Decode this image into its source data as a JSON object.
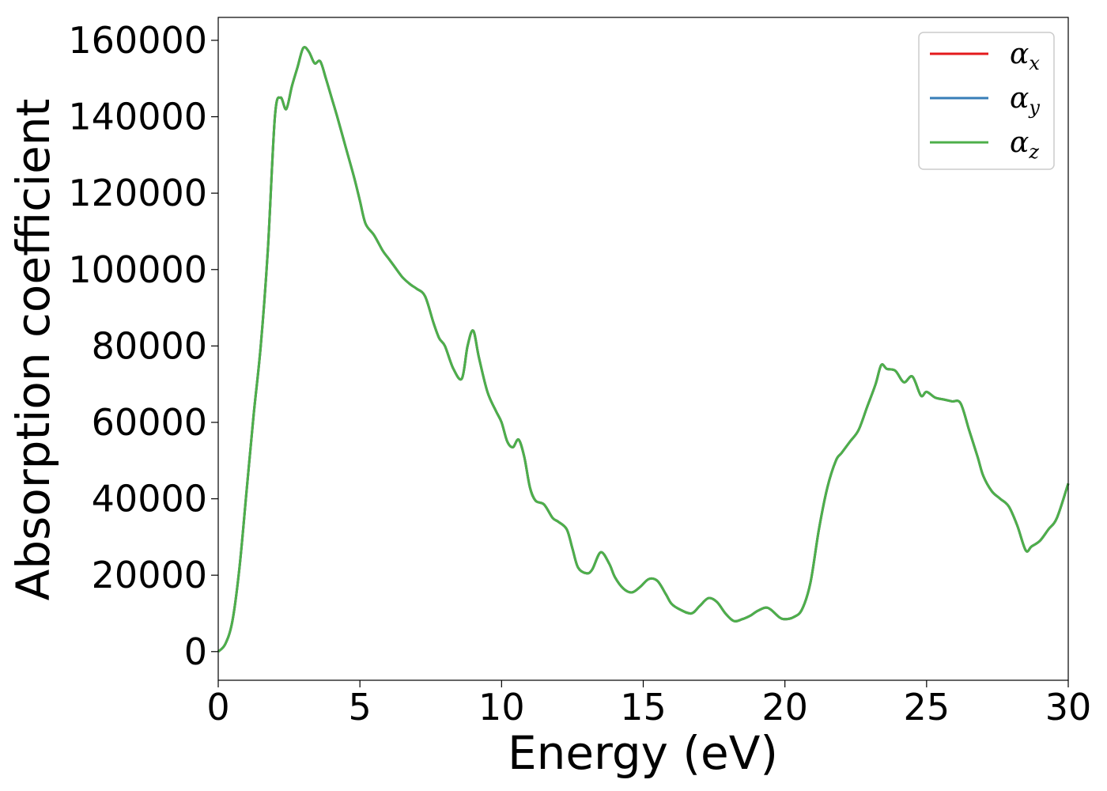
{
  "chart_data": {
    "type": "line",
    "title": "",
    "xlabel": "Energy (eV)",
    "ylabel": "Absorption coefficient",
    "xlim": [
      0,
      30
    ],
    "ylim": [
      -7500,
      166000
    ],
    "xticks": [
      0,
      5,
      10,
      15,
      20,
      25,
      30
    ],
    "yticks": [
      0,
      20000,
      40000,
      60000,
      80000,
      100000,
      120000,
      140000,
      160000
    ],
    "grid": false,
    "legend_position": "top-right",
    "series": [
      {
        "name": "α",
        "sub": "x",
        "color": "#e41a1c",
        "data_ref": "common"
      },
      {
        "name": "α",
        "sub": "y",
        "color": "#377eb8",
        "data_ref": "common"
      },
      {
        "name": "α",
        "sub": "z",
        "color": "#4daf4a",
        "data_ref": "common"
      }
    ],
    "common_curve": {
      "x": [
        0,
        0.25,
        0.5,
        0.75,
        1.0,
        1.25,
        1.5,
        1.75,
        2.0,
        2.2,
        2.4,
        2.6,
        2.8,
        3.0,
        3.2,
        3.4,
        3.6,
        3.8,
        4.0,
        4.2,
        4.5,
        4.8,
        5.0,
        5.2,
        5.5,
        5.8,
        6.0,
        6.2,
        6.5,
        6.8,
        7.0,
        7.3,
        7.6,
        7.8,
        8.0,
        8.3,
        8.6,
        8.8,
        9.0,
        9.2,
        9.5,
        9.8,
        10.0,
        10.2,
        10.4,
        10.6,
        10.8,
        11.0,
        11.2,
        11.5,
        11.8,
        12.0,
        12.3,
        12.5,
        12.7,
        13.0,
        13.2,
        13.5,
        13.8,
        14.0,
        14.3,
        14.6,
        14.9,
        15.2,
        15.5,
        15.8,
        16.0,
        16.3,
        16.7,
        17.0,
        17.3,
        17.6,
        17.9,
        18.2,
        18.5,
        18.8,
        19.0,
        19.3,
        19.5,
        19.8,
        20.0,
        20.3,
        20.6,
        20.9,
        21.2,
        21.5,
        21.8,
        22.0,
        22.3,
        22.6,
        22.9,
        23.2,
        23.4,
        23.6,
        23.9,
        24.2,
        24.5,
        24.8,
        25.0,
        25.3,
        25.6,
        25.9,
        26.2,
        26.5,
        26.8,
        27.0,
        27.3,
        27.6,
        27.9,
        28.2,
        28.5,
        28.7,
        29.0,
        29.3,
        29.6,
        30.0
      ],
      "y": [
        0,
        2000,
        8000,
        22000,
        42000,
        62000,
        80000,
        105000,
        140000,
        145000,
        142000,
        148000,
        153000,
        158000,
        157000,
        154000,
        154500,
        150000,
        145000,
        140000,
        132000,
        124000,
        118000,
        112000,
        109000,
        105000,
        103000,
        101000,
        98000,
        96000,
        95000,
        93000,
        86000,
        82000,
        80000,
        74000,
        71500,
        80000,
        84000,
        77000,
        68000,
        63000,
        60000,
        55000,
        53500,
        55500,
        51000,
        43000,
        39500,
        38500,
        35000,
        34000,
        32000,
        27000,
        22000,
        20500,
        21500,
        26000,
        23000,
        19500,
        16500,
        15500,
        17000,
        19000,
        18500,
        15000,
        12500,
        11000,
        10000,
        12000,
        14000,
        13000,
        10000,
        8000,
        8500,
        9500,
        10500,
        11500,
        11000,
        9000,
        8500,
        9000,
        11000,
        18000,
        32000,
        43000,
        50000,
        52000,
        55000,
        58000,
        64000,
        70000,
        75000,
        74000,
        73500,
        70500,
        72000,
        67000,
        68000,
        66500,
        66000,
        65500,
        65000,
        58000,
        51000,
        46000,
        42000,
        40000,
        38000,
        33000,
        26500,
        27500,
        29000,
        32000,
        35000,
        44000
      ]
    }
  }
}
